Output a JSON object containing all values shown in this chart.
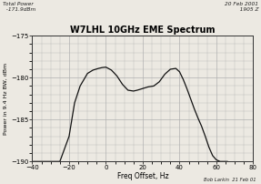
{
  "title": "W7LHL 10GHz EME Spectrum",
  "top_left_text": "Total Power\n  -171.9dBm",
  "top_right_text": "20 Feb 2001\n   1905 Z",
  "bottom_right_text": "Bob Larkin  21 Feb 01",
  "xlabel": "Freq Offset, Hz",
  "ylabel": "Power in 9.4 Hz BW, dBm",
  "xlim": [
    -40,
    80
  ],
  "ylim": [
    -190,
    -175
  ],
  "xticks": [
    -40,
    -20,
    0,
    20,
    40,
    60,
    80
  ],
  "yticks": [
    -190,
    -185,
    -180,
    -175
  ],
  "grid_color": "#b0b0b0",
  "bg_color": "#ece9e2",
  "line_color": "#111111",
  "curve_x": [
    -40,
    -25,
    -20,
    -17,
    -14,
    -10,
    -7,
    -4,
    -2,
    0,
    3,
    6,
    9,
    12,
    15,
    17,
    20,
    23,
    26,
    29,
    32,
    35,
    38,
    40,
    42,
    44,
    46,
    48,
    50,
    52,
    54,
    56,
    58,
    60,
    62,
    64,
    66
  ],
  "curve_y": [
    -190,
    -190,
    -187,
    -183,
    -181.0,
    -179.5,
    -179.1,
    -178.9,
    -178.8,
    -178.75,
    -179.1,
    -179.8,
    -180.8,
    -181.5,
    -181.6,
    -181.5,
    -181.3,
    -181.1,
    -181.0,
    -180.5,
    -179.6,
    -179.0,
    -178.9,
    -179.3,
    -180.2,
    -181.3,
    -182.5,
    -183.7,
    -184.8,
    -185.8,
    -187.0,
    -188.3,
    -189.3,
    -189.8,
    -190.0,
    -190.0,
    -190.0
  ]
}
